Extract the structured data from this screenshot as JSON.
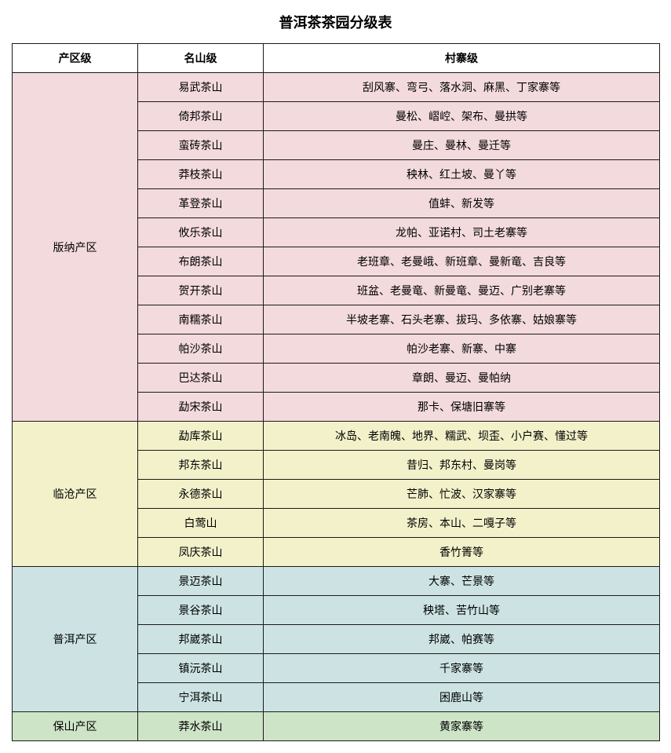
{
  "title": "普洱茶茶园分级表",
  "columns": {
    "region": "产区级",
    "mountain": "名山级",
    "village": "村寨级"
  },
  "regions": [
    {
      "name": "版纳产区",
      "bgClass": "bg-pink",
      "rows": [
        {
          "mountain": "易武茶山",
          "village": "刮风寨、弯弓、落水洞、麻黑、丁家寨等"
        },
        {
          "mountain": "倚邦茶山",
          "village": "曼松、嶍崆、架布、曼拱等"
        },
        {
          "mountain": "蛮砖茶山",
          "village": "曼庄、曼林、曼迁等"
        },
        {
          "mountain": "莽枝茶山",
          "village": "秧林、红土坡、曼丫等"
        },
        {
          "mountain": "革登茶山",
          "village": "值蚌、新发等"
        },
        {
          "mountain": "攸乐茶山",
          "village": "龙帕、亚诺村、司土老寨等"
        },
        {
          "mountain": "布朗茶山",
          "village": "老班章、老曼峨、新班章、曼新竜、吉良等"
        },
        {
          "mountain": "贺开茶山",
          "village": "班盆、老曼竜、新曼竜、曼迈、广别老寨等"
        },
        {
          "mountain": "南糯茶山",
          "village": "半坡老寨、石头老寨、拔玛、多依寨、姑娘寨等"
        },
        {
          "mountain": "帕沙茶山",
          "village": "帕沙老寨、新寨、中寨"
        },
        {
          "mountain": "巴达茶山",
          "village": "章朗、曼迈、曼帕纳"
        },
        {
          "mountain": "勐宋茶山",
          "village": "那卡、保塘旧寨等"
        }
      ]
    },
    {
      "name": "临沧产区",
      "bgClass": "bg-yellow",
      "rows": [
        {
          "mountain": "勐库茶山",
          "village": "冰岛、老南魄、地界、糯武、坝歪、小户赛、懂过等"
        },
        {
          "mountain": "邦东茶山",
          "village": "昔归、邦东村、曼岗等"
        },
        {
          "mountain": "永德茶山",
          "village": "芒肺、忙波、汉家寨等"
        },
        {
          "mountain": "白莺山",
          "village": "茶房、本山、二嘎子等"
        },
        {
          "mountain": "凤庆茶山",
          "village": "香竹箐等"
        }
      ]
    },
    {
      "name": "普洱产区",
      "bgClass": "bg-blue",
      "rows": [
        {
          "mountain": "景迈茶山",
          "village": "大寨、芒景等"
        },
        {
          "mountain": "景谷茶山",
          "village": "秧塔、苦竹山等"
        },
        {
          "mountain": "邦崴茶山",
          "village": "邦崴、帕赛等"
        },
        {
          "mountain": "镇沅茶山",
          "village": "千家寨等"
        },
        {
          "mountain": "宁洱茶山",
          "village": "困鹿山等"
        }
      ]
    },
    {
      "name": "保山产区",
      "bgClass": "bg-green",
      "rows": [
        {
          "mountain": "莽水茶山",
          "village": "黄家寨等"
        }
      ]
    }
  ]
}
